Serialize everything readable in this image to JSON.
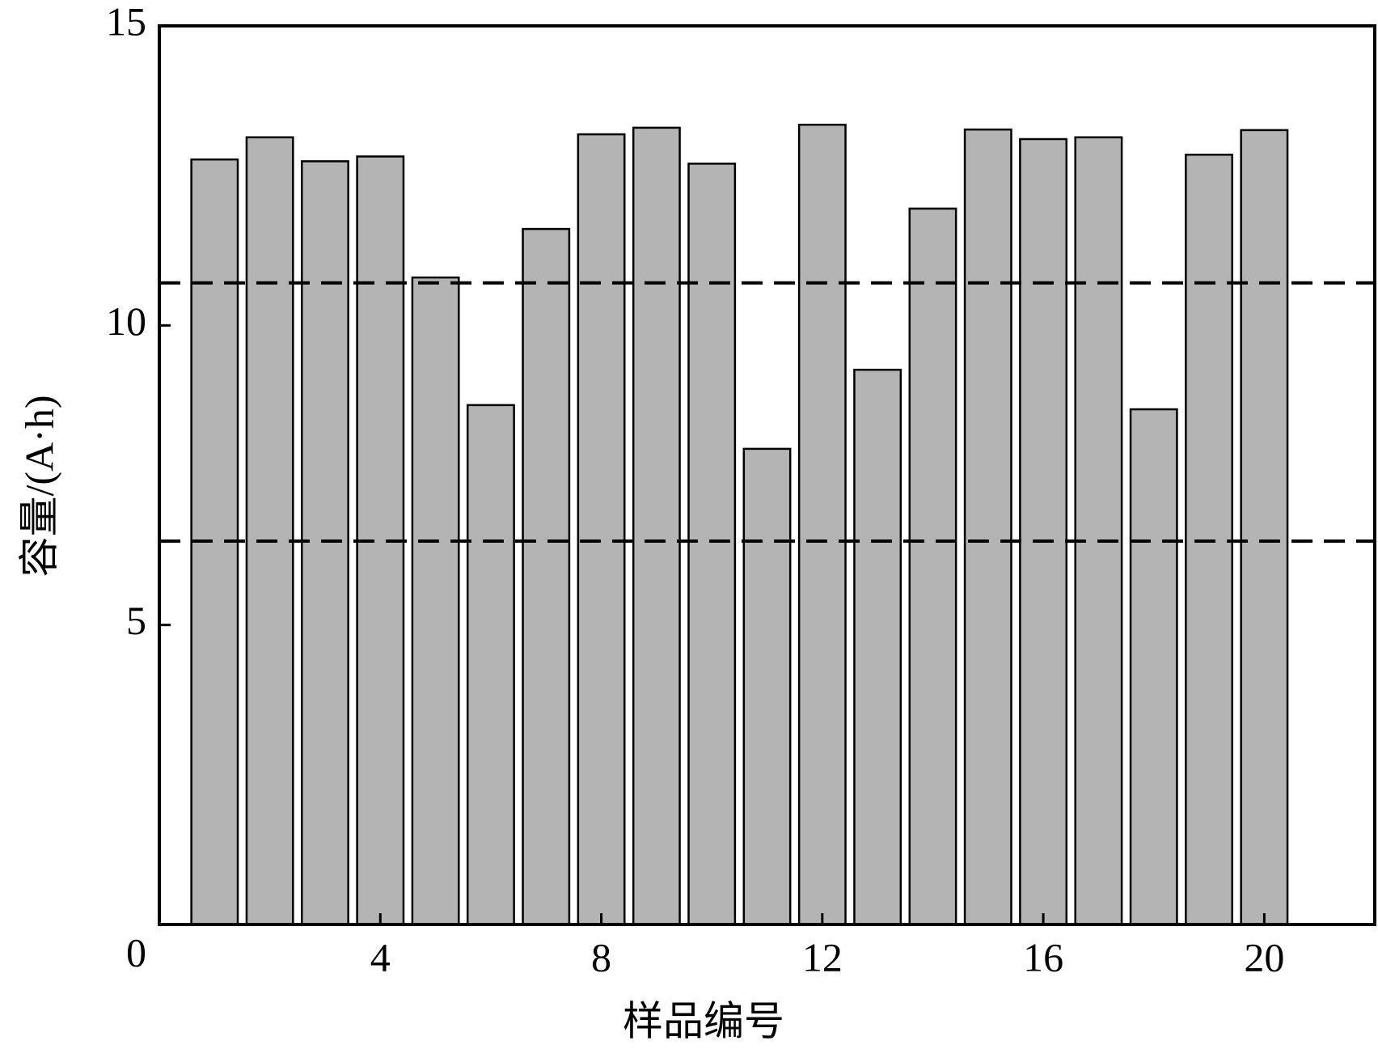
{
  "chart_data": {
    "type": "bar",
    "x_label": "样品编号",
    "y_label": "容量/(A·h)",
    "x": [
      1,
      2,
      3,
      4,
      5,
      6,
      7,
      8,
      9,
      10,
      11,
      12,
      13,
      14,
      15,
      16,
      17,
      18,
      19,
      20
    ],
    "values": [
      12.77,
      13.14,
      12.74,
      12.82,
      10.8,
      8.67,
      11.61,
      13.19,
      13.3,
      12.7,
      7.94,
      13.35,
      9.26,
      11.95,
      13.27,
      13.11,
      13.14,
      8.6,
      12.85,
      13.26
    ],
    "color": "#b4b4b4",
    "xlim": [
      0,
      22
    ],
    "xticks": [
      4,
      8,
      12,
      16,
      20
    ],
    "ylim": [
      0,
      15
    ],
    "yticks": [
      0,
      5,
      10,
      15
    ],
    "reference_lines": [
      10.71,
      6.4
    ],
    "grid": false
  }
}
